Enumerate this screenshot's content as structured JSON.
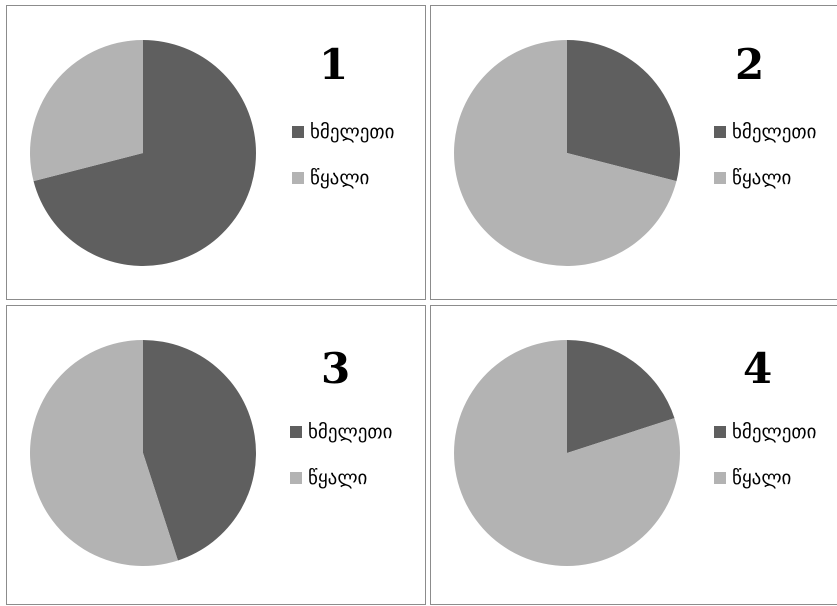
{
  "colors": {
    "land": "#5f5f5f",
    "water": "#b3b3b3"
  },
  "chart_data": [
    {
      "type": "pie",
      "title": "1",
      "categories": [
        "ხმელეთი",
        "წყალი"
      ],
      "values": [
        71,
        29
      ],
      "legend": "right"
    },
    {
      "type": "pie",
      "title": "2",
      "categories": [
        "ხმელეთი",
        "წყალი"
      ],
      "values": [
        29,
        71
      ],
      "legend": "right"
    },
    {
      "type": "pie",
      "title": "3",
      "categories": [
        "ხმელეთი",
        "წყალი"
      ],
      "values": [
        45,
        55
      ],
      "legend": "right"
    },
    {
      "type": "pie",
      "title": "4",
      "categories": [
        "ხმელეთი",
        "წყალი"
      ],
      "values": [
        20,
        80
      ],
      "legend": "right"
    }
  ]
}
